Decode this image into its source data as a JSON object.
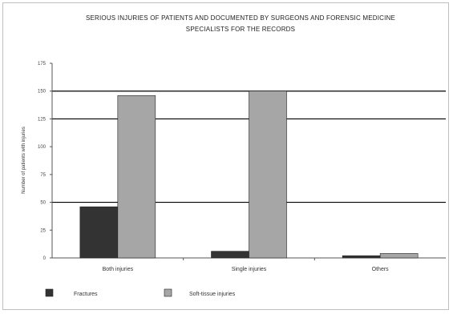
{
  "chart_data": {
    "type": "bar",
    "title": "SERIOUS INJURIES OF PATIENTS AND DOCUMENTED BY SURGEONS AND FORENSIC MEDICINE SPECIALISTS FOR THE RECORDS",
    "title_lines": [
      "SERIOUS INJURIES OF PATIENTS AND DOCUMENTED BY SURGEONS AND FORENSIC MEDICINE",
      "SPECIALISTS FOR THE RECORDS"
    ],
    "categories": [
      "Both injuries",
      "Single injuries",
      "Others"
    ],
    "series": [
      {
        "name": "Fractures",
        "color": "#333333",
        "values": [
          46,
          6,
          2
        ]
      },
      {
        "name": "Soft-tissue injuries",
        "color": "#a6a6a6",
        "values": [
          146,
          150,
          4
        ]
      }
    ],
    "ylabel": "Number of patients with injuries",
    "xlabel": "",
    "ylim": [
      0,
      175
    ],
    "yticks": [
      0,
      25,
      50,
      75,
      100,
      125,
      150,
      175
    ],
    "gridlines": [
      50,
      125,
      150
    ],
    "legend_position": "bottom-left"
  }
}
